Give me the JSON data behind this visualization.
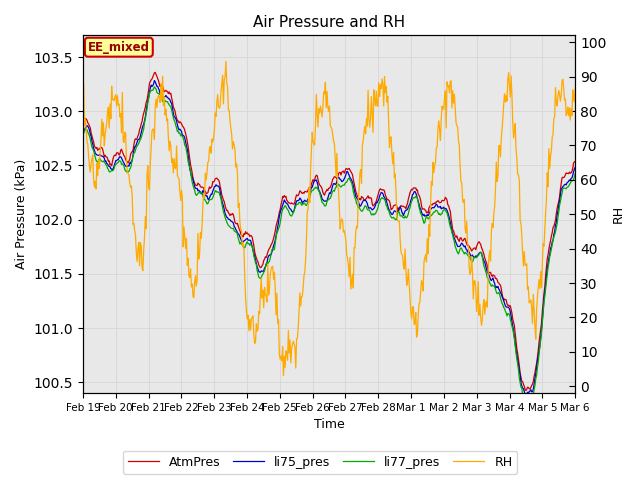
{
  "title": "Air Pressure and RH",
  "xlabel": "Time",
  "ylabel_left": "Air Pressure (kPa)",
  "ylabel_right": "RH",
  "annotation": "EE_mixed",
  "ylim_left": [
    100.4,
    103.7
  ],
  "ylim_right": [
    -2,
    102
  ],
  "yticks_left": [
    100.5,
    101.0,
    101.5,
    102.0,
    102.5,
    103.0,
    103.5
  ],
  "yticks_right": [
    0,
    10,
    20,
    30,
    40,
    50,
    60,
    70,
    80,
    90,
    100
  ],
  "legend_labels": [
    "AtmPres",
    "li75_pres",
    "li77_pres",
    "RH"
  ],
  "line_colors": {
    "AtmPres": "#cc0000",
    "li75_pres": "#0000cc",
    "li77_pres": "#00aa00",
    "RH": "#ffaa00"
  },
  "grid_color": "#d8d8d8",
  "background_color": "#e8e8e8",
  "n_points": 600,
  "xtick_labels": [
    "Feb 19",
    "Feb 20",
    "Feb 21",
    "Feb 22",
    "Feb 23",
    "Feb 24",
    "Feb 25",
    "Feb 26",
    "Feb 27",
    "Feb 28",
    "Mar 1",
    "Mar 2",
    "Mar 3",
    "Mar 4",
    "Mar 5",
    "Mar 6"
  ],
  "figsize": [
    6.4,
    4.8
  ],
  "dpi": 100
}
